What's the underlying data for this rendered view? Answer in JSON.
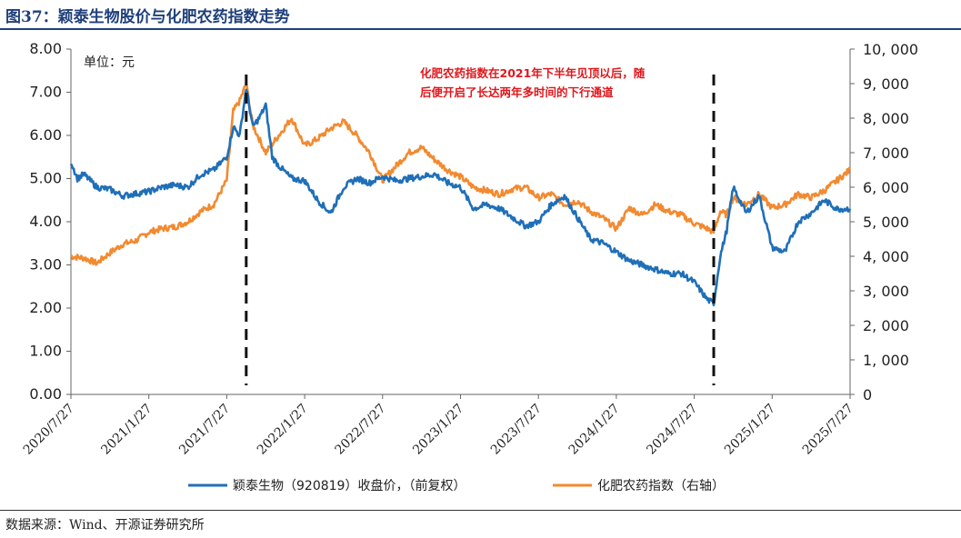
{
  "title": "图37：颖泰生物股价与化肥农药指数走势",
  "source": "数据来源：Wind、开源证券研究所",
  "chart_data": {
    "type": "line",
    "unit_label": "单位：元",
    "annotation_lines": [
      "化肥农药指数在2021年下半年见顶以后，随",
      "后便开启了长达两年多时间的下行通道"
    ],
    "x_tick_labels": [
      "2020/7/27",
      "2021/1/27",
      "2021/7/27",
      "2022/1/27",
      "2022/7/27",
      "2023/1/27",
      "2023/7/27",
      "2024/1/27",
      "2024/7/27",
      "2025/1/27",
      "2025/7/27"
    ],
    "x_range_months": [
      0,
      60
    ],
    "y_left": {
      "ylim": [
        0,
        8
      ],
      "tick_labels": [
        "0.00",
        "1.00",
        "2.00",
        "3.00",
        "4.00",
        "5.00",
        "6.00",
        "7.00",
        "8.00"
      ],
      "ticks": [
        0,
        1,
        2,
        3,
        4,
        5,
        6,
        7,
        8
      ]
    },
    "y_right": {
      "ylim": [
        0,
        10000
      ],
      "tick_labels": [
        "0",
        "1, 000",
        "2, 000",
        "3, 000",
        "4, 000",
        "5, 000",
        "6, 000",
        "7, 000",
        "8, 000",
        "9, 000",
        "10, 000"
      ],
      "ticks": [
        0,
        1000,
        2000,
        3000,
        4000,
        5000,
        6000,
        7000,
        8000,
        9000,
        10000
      ]
    },
    "vlines_month": [
      13.5,
      49.5
    ],
    "series": [
      {
        "name": "颖泰生物（920819）收盘价，（前复权）",
        "axis": "left",
        "color": "#1f6fb8",
        "x": [
          0,
          0.5,
          1,
          2,
          3,
          4,
          5,
          6,
          7,
          8,
          9,
          10,
          11,
          12,
          12.5,
          13,
          13.5,
          14,
          14.5,
          15,
          15.5,
          16,
          17,
          18,
          19,
          20,
          21,
          22,
          23,
          24,
          25,
          26,
          27,
          28,
          29,
          30,
          31,
          32,
          33,
          34,
          35,
          36,
          37,
          38,
          39,
          40,
          41,
          42,
          43,
          44,
          45,
          46,
          47,
          48,
          49,
          49.5,
          50,
          50.5,
          51,
          52,
          53,
          54,
          55,
          56,
          57,
          58,
          59,
          60
        ],
        "y": [
          5.4,
          5.0,
          5.1,
          4.8,
          4.75,
          4.6,
          4.65,
          4.7,
          4.8,
          4.85,
          4.8,
          5.1,
          5.2,
          5.5,
          6.2,
          6.0,
          7.1,
          6.2,
          6.4,
          6.7,
          5.5,
          5.3,
          5.0,
          4.95,
          4.5,
          4.2,
          4.8,
          5.0,
          4.9,
          5.05,
          4.95,
          5.0,
          5.05,
          5.1,
          4.9,
          4.8,
          4.3,
          4.4,
          4.3,
          4.1,
          3.9,
          4.0,
          4.4,
          4.6,
          4.1,
          3.6,
          3.5,
          3.3,
          3.1,
          3.0,
          2.9,
          2.8,
          2.8,
          2.6,
          2.2,
          2.1,
          3.2,
          3.8,
          4.8,
          4.2,
          4.6,
          3.4,
          3.3,
          4.0,
          4.2,
          4.5,
          4.3,
          4.3
        ]
      },
      {
        "name": "化肥农药指数（右轴）",
        "axis": "right",
        "color": "#f28a30",
        "x": [
          0,
          1,
          2,
          3,
          4,
          5,
          6,
          7,
          8,
          9,
          10,
          11,
          12,
          12.5,
          13,
          13.5,
          14,
          15,
          16,
          17,
          18,
          19,
          20,
          21,
          22,
          23,
          24,
          25,
          26,
          27,
          28,
          29,
          30,
          31,
          32,
          33,
          34,
          35,
          36,
          37,
          38,
          39,
          40,
          41,
          42,
          43,
          44,
          45,
          46,
          47,
          48,
          49,
          49.5,
          50,
          50.5,
          51,
          52,
          53,
          54,
          55,
          56,
          57,
          58,
          59,
          60
        ],
        "y": [
          4000,
          3950,
          3800,
          4100,
          4350,
          4450,
          4700,
          4800,
          4850,
          5000,
          5300,
          5500,
          6200,
          8200,
          8500,
          9000,
          7800,
          7000,
          7500,
          8000,
          7200,
          7400,
          7700,
          7900,
          7500,
          7000,
          6200,
          6600,
          7000,
          7150,
          6800,
          6500,
          6300,
          6000,
          5900,
          5800,
          5950,
          6000,
          5700,
          5800,
          5500,
          5600,
          5300,
          5100,
          4800,
          5400,
          5200,
          5500,
          5300,
          5200,
          4950,
          4800,
          4700,
          5300,
          5200,
          5700,
          5500,
          5800,
          5400,
          5500,
          5800,
          5700,
          5900,
          6200,
          6500
        ]
      }
    ]
  }
}
